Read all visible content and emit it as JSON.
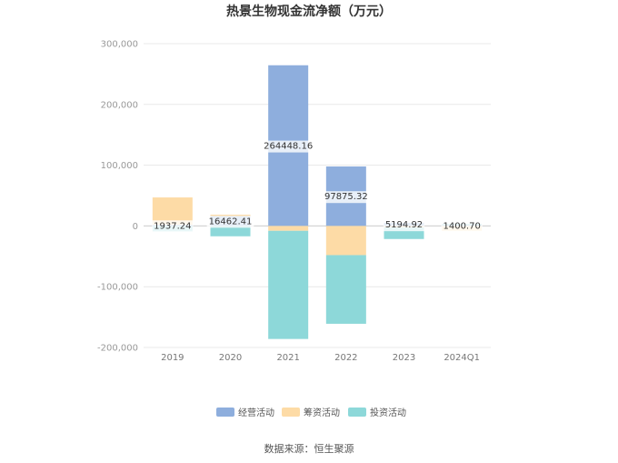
{
  "chart_data": {
    "type": "bar",
    "stacked": true,
    "title": "热景生物现金流净额（万元）",
    "categories": [
      "2019",
      "2020",
      "2021",
      "2022",
      "2023",
      "2024Q1"
    ],
    "series": [
      {
        "name": "经营活动",
        "color": "#8eaedd",
        "values": [
          1937.24,
          16462.41,
          264448.16,
          97875.32,
          5194.92,
          1400.7
        ]
      },
      {
        "name": "筹资活动",
        "color": "#fddba6",
        "values": [
          45000,
          2000,
          -8000,
          -48000,
          -2500,
          -8000
        ]
      },
      {
        "name": "投资活动",
        "color": "#8dd8d9",
        "values": [
          -9000,
          -17000,
          -178000,
          -113000,
          -19000,
          2000
        ]
      }
    ],
    "data_labels": [
      "1937.24",
      "16462.41",
      "264448.16",
      "97875.32",
      "5194.92",
      "1400.70"
    ],
    "yticks": [
      300000,
      200000,
      100000,
      0,
      -100000,
      -200000
    ],
    "ytick_labels": [
      "300,000",
      "200,000",
      "100,000",
      "0",
      "-100,000",
      "-200,000"
    ],
    "ylim": [
      -200000,
      300000
    ],
    "grid": true,
    "legend_position": "bottom"
  },
  "source": "数据来源：恒生聚源"
}
